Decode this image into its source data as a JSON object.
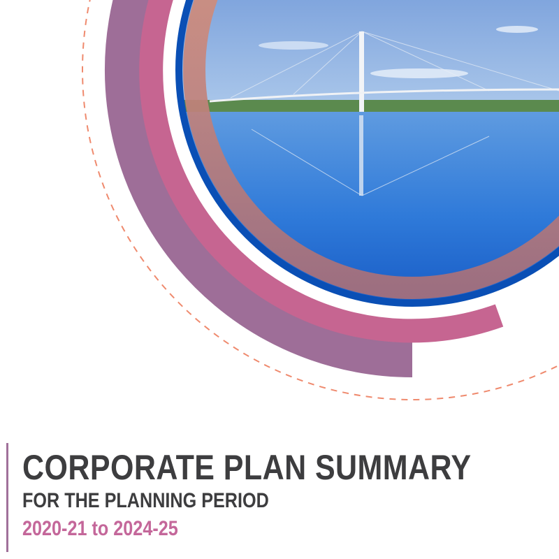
{
  "cover": {
    "title": "CORPORATE PLAN SUMMARY",
    "subtitle": "FOR THE PLANNING PERIOD",
    "period": "2020-21 to 2024-25"
  },
  "colors": {
    "title": "#3d3d3f",
    "period": "#c4679a",
    "purple_arc": "#9e6e98",
    "pink_arc": "#c66591",
    "salmon_ring": "#d48c78",
    "blue_ring": "#0a4fb5",
    "dashed_circle": "#ef8a6e"
  },
  "image": {
    "subject": "cable-stayed bridge over river"
  }
}
